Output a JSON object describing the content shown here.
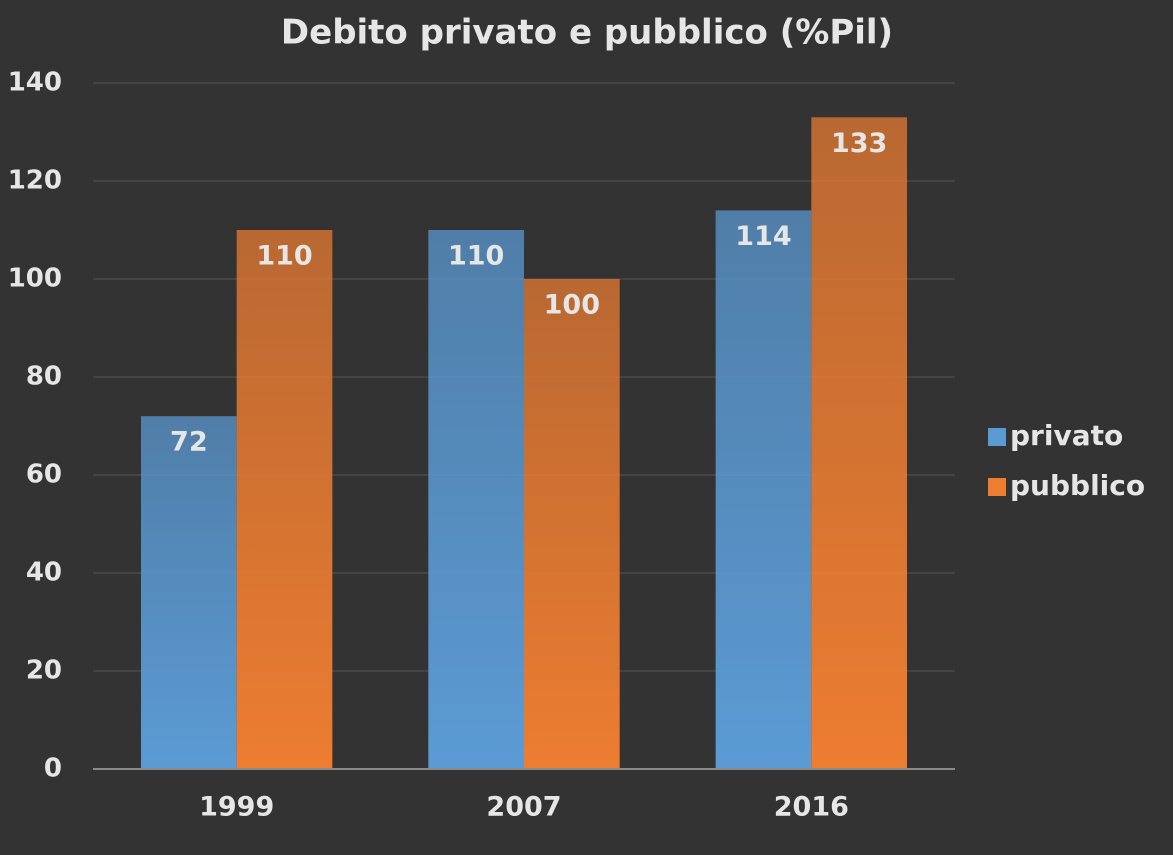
{
  "chart_data": {
    "type": "bar",
    "title": "Debito privato e pubblico (%Pil)",
    "categories": [
      "1999",
      "2007",
      "2016"
    ],
    "series": [
      {
        "name": "privato",
        "color": "#5b9bd5",
        "values": [
          72,
          110,
          114
        ]
      },
      {
        "name": "pubblico",
        "color": "#ed7d31",
        "values": [
          110,
          100,
          133
        ]
      }
    ],
    "ylim": [
      0,
      140
    ],
    "yticks": [
      0,
      20,
      40,
      60,
      80,
      100,
      120,
      140
    ],
    "grid": true,
    "legend": "right"
  }
}
